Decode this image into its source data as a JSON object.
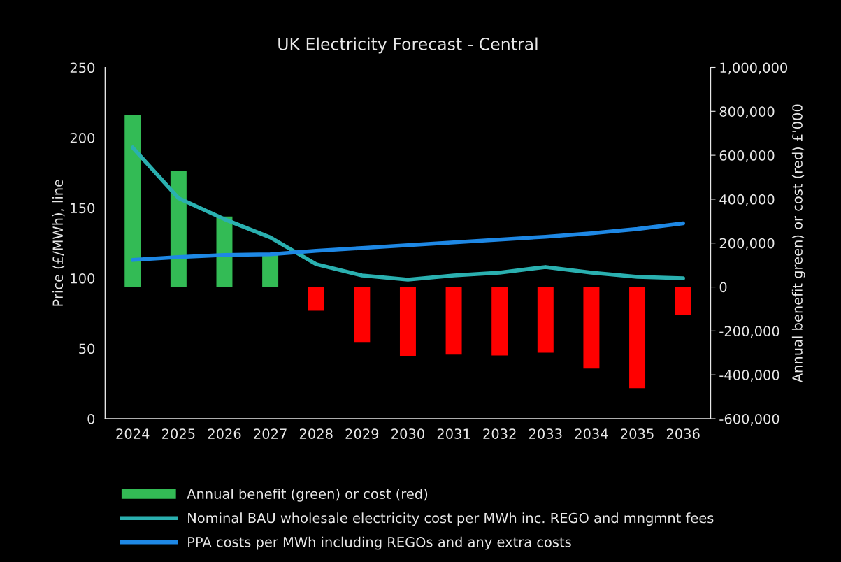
{
  "chart_data": {
    "type": "bar",
    "title": "UK Electricity Forecast - Central",
    "categories": [
      "2024",
      "2025",
      "2026",
      "2027",
      "2028",
      "2029",
      "2030",
      "2031",
      "2032",
      "2033",
      "2034",
      "2035",
      "2036"
    ],
    "series": [
      {
        "name": "Annual benefit (green) or cost (red)",
        "axis": "y2",
        "color": "#33bb55",
        "colors": [
          "#33bb55",
          "#33bb55",
          "#33bb55",
          "#33bb55",
          "#ff0000",
          "#ff0000",
          "#ff0000",
          "#ff0000",
          "#ff0000",
          "#ff0000",
          "#ff0000",
          "#ff0000",
          "#ff0000"
        ],
        "values": [
          785000,
          528000,
          321000,
          146000,
          -108000,
          -251000,
          -315000,
          -308000,
          -312000,
          -299000,
          -372000,
          -461000,
          -127000
        ]
      },
      {
        "name": "Nominal BAU wholesale electricity cost per MWh inc. REGO and mngmnt fees",
        "type": "line",
        "color": "#2ab0b0",
        "values": [
          193,
          157,
          142,
          129,
          110,
          102,
          99,
          102,
          104,
          108,
          104,
          101,
          100
        ]
      },
      {
        "name": "PPA costs per MWh including REGOs and any extra costs",
        "type": "line",
        "color": "#1e88e5",
        "values": [
          113,
          115,
          116.5,
          117,
          119.5,
          121.5,
          123.5,
          125.5,
          127.5,
          129.5,
          132,
          135,
          139
        ]
      }
    ],
    "ylabel": "Price (£/MWh), line",
    "y2label": "Annual benefit green) or cost (red) £'000",
    "ylim": [
      0,
      250
    ],
    "yticks": [
      0,
      50,
      100,
      150,
      200,
      250
    ],
    "y2lim": [
      -600000,
      1000000
    ],
    "y2ticks": [
      {
        "value": -600000,
        "label": "-600,000"
      },
      {
        "value": -400000,
        "label": "-400,000"
      },
      {
        "value": -200000,
        "label": "-200,000"
      },
      0,
      {
        "value": 200000,
        "label": "200,000"
      },
      {
        "value": 400000,
        "label": "400,000"
      },
      {
        "value": 600000,
        "label": "600,000"
      },
      {
        "value": 800000,
        "label": "800,000"
      },
      {
        "value": 1000000,
        "label": "1,000,000"
      }
    ],
    "grid": false,
    "legend": "bottom",
    "marker": "none",
    "line_style": "solid"
  }
}
